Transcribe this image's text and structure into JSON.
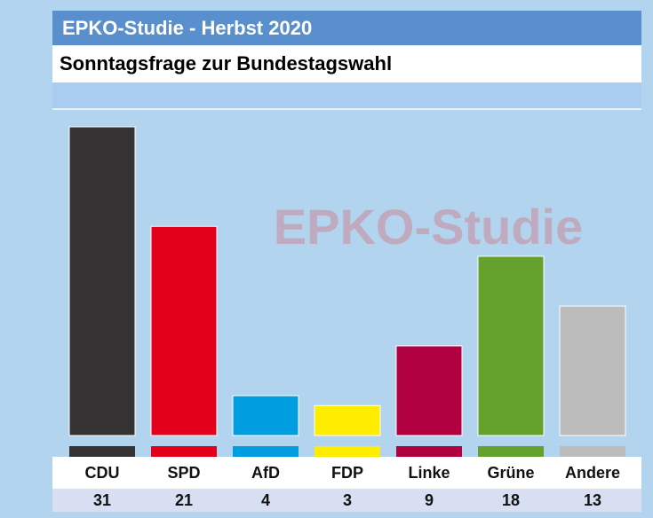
{
  "header": {
    "title": "EPKO-Studie - Herbst 2020",
    "subtitle": "Sonntagsfrage zur Bundestagswahl",
    "watermark": "EPKO-Studie"
  },
  "chart_data": {
    "type": "bar",
    "title": "Sonntagsfrage zur Bundestagswahl",
    "categories": [
      "CDU",
      "SPD",
      "AfD",
      "FDP",
      "Linke",
      "Grüne",
      "Andere"
    ],
    "values": [
      31,
      21,
      4,
      3,
      9,
      18,
      13
    ],
    "value_labels": [
      "31",
      "21",
      "4",
      "3",
      "9",
      "18",
      "13"
    ],
    "colors": [
      "#343232",
      "#e3001b",
      "#009ee0",
      "#ffed00",
      "#b1003f",
      "#64a12d",
      "#bcbcbc"
    ],
    "ylim": [
      0,
      31
    ],
    "grid": false,
    "legend": "none"
  }
}
